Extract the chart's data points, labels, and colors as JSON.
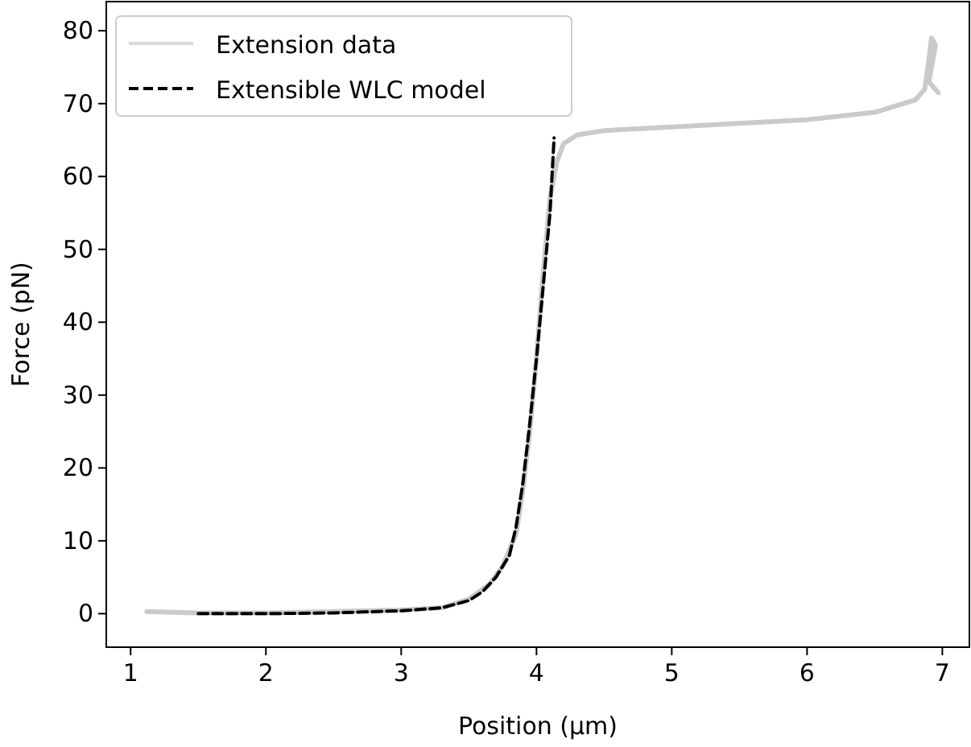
{
  "chart_data": {
    "type": "line",
    "xlabel": "Position (μm)",
    "ylabel": "Force (pN)",
    "xlim": [
      0.82,
      7.2
    ],
    "ylim": [
      -4.6,
      84
    ],
    "xticks": [
      1,
      2,
      3,
      4,
      5,
      6,
      7
    ],
    "yticks": [
      0,
      10,
      20,
      30,
      40,
      50,
      60,
      70,
      80
    ],
    "grid": false,
    "legend": "top left",
    "series": [
      {
        "name": "Extension data",
        "color": "#b4b4b4",
        "line_style": "solid",
        "x": [
          1.12,
          1.5,
          2,
          2.5,
          3,
          3.3,
          3.5,
          3.65,
          3.75,
          3.85,
          3.9,
          3.95,
          4.0,
          4.05,
          4.1,
          4.15,
          4.2,
          4.3,
          4.5,
          5,
          5.5,
          6,
          6.5,
          6.8,
          6.87,
          6.9,
          6.92,
          6.95,
          6.9,
          6.97
        ],
        "values": [
          0.3,
          0.1,
          0.1,
          0.3,
          0.5,
          0.8,
          2,
          4,
          6.5,
          11,
          17,
          25,
          35,
          47,
          57,
          62,
          64.5,
          65.7,
          66.3,
          66.8,
          67.3,
          67.8,
          68.8,
          70.5,
          72,
          76,
          79,
          78,
          73,
          71.5
        ]
      },
      {
        "name": "Extensible WLC model",
        "color": "#000000",
        "line_style": "dashed",
        "x": [
          1.5,
          2,
          2.5,
          3,
          3.3,
          3.5,
          3.6,
          3.7,
          3.8,
          3.85,
          3.9,
          3.95,
          4.0,
          4.05,
          4.1,
          4.13
        ],
        "values": [
          0,
          0,
          0.1,
          0.4,
          0.8,
          1.8,
          3,
          5,
          8,
          12,
          18,
          26,
          35,
          45,
          55,
          65.3
        ]
      }
    ]
  }
}
